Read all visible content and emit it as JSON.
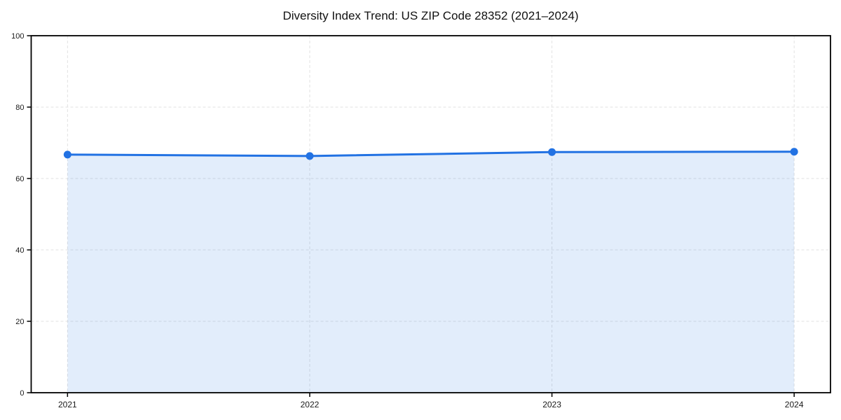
{
  "chart_data": {
    "type": "area",
    "title": "Diversity Index Trend: US ZIP Code 28352 (2021–2024)",
    "x": [
      "2021",
      "2022",
      "2023",
      "2024"
    ],
    "series": [
      {
        "name": "Diversity Index",
        "values": [
          66.7,
          66.3,
          67.4,
          67.5
        ]
      }
    ],
    "xlabel": "",
    "ylabel": "",
    "ylim": [
      0,
      100
    ],
    "yticks": [
      0,
      20,
      40,
      60,
      80,
      100
    ],
    "grid": true,
    "grid_style": "dashed",
    "legend": false,
    "colors": {
      "line": "#2272e3",
      "marker": "#2272e3",
      "fill": "rgba(34,114,227,0.13)",
      "grid": "#e2e2e2",
      "axis": "#000000",
      "tick_text": "#1a1a1a",
      "title_text": "#111111",
      "background": "#ffffff"
    }
  }
}
